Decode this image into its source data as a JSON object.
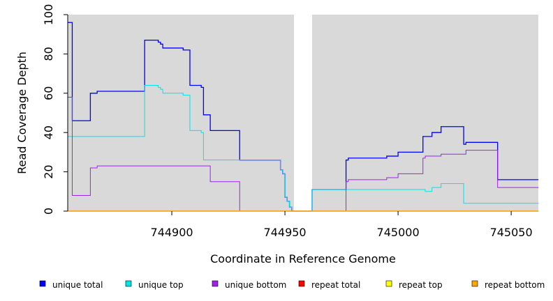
{
  "chart_data": {
    "type": "line",
    "title": "",
    "xlabel": "Coordinate in Reference Genome",
    "ylabel": "Read Coverage Depth",
    "xlim": [
      744854,
      745062
    ],
    "ylim": [
      0,
      100
    ],
    "x_ticks": [
      744900,
      744950,
      745000,
      745050
    ],
    "y_ticks": [
      0,
      20,
      40,
      60,
      80,
      100
    ],
    "gap_region": [
      744954,
      744962
    ],
    "background_color": "#d9d9d9",
    "legend_position": "bottom",
    "series": [
      {
        "name": "unique total",
        "color": "#0000ff",
        "points": [
          [
            744854,
            96
          ],
          [
            744856,
            96
          ],
          [
            744856,
            46
          ],
          [
            744864,
            46
          ],
          [
            744864,
            60
          ],
          [
            744867,
            60
          ],
          [
            744867,
            61
          ],
          [
            744888,
            61
          ],
          [
            744888,
            87
          ],
          [
            744894,
            87
          ],
          [
            744894,
            86
          ],
          [
            744895,
            86
          ],
          [
            744895,
            85
          ],
          [
            744896,
            85
          ],
          [
            744896,
            83
          ],
          [
            744905,
            83
          ],
          [
            744905,
            82
          ],
          [
            744908,
            82
          ],
          [
            744908,
            64
          ],
          [
            744913,
            64
          ],
          [
            744913,
            63
          ],
          [
            744914,
            63
          ],
          [
            744914,
            49
          ],
          [
            744917,
            49
          ],
          [
            744917,
            41
          ],
          [
            744930,
            41
          ],
          [
            744930,
            26
          ],
          [
            744948,
            26
          ],
          [
            744948,
            21
          ],
          [
            744949,
            21
          ],
          [
            744949,
            19
          ],
          [
            744950,
            19
          ],
          [
            744950,
            7
          ],
          [
            744951,
            7
          ],
          [
            744951,
            5
          ],
          [
            744952,
            5
          ],
          [
            744952,
            2
          ],
          [
            744953,
            2
          ],
          [
            744953,
            0
          ],
          [
            744962,
            0
          ],
          [
            744962,
            11
          ],
          [
            744977,
            11
          ],
          [
            744977,
            26
          ],
          [
            744978,
            26
          ],
          [
            744978,
            27
          ],
          [
            744995,
            27
          ],
          [
            744995,
            28
          ],
          [
            745000,
            28
          ],
          [
            745000,
            30
          ],
          [
            745011,
            30
          ],
          [
            745011,
            38
          ],
          [
            745015,
            38
          ],
          [
            745015,
            40
          ],
          [
            745019,
            40
          ],
          [
            745019,
            43
          ],
          [
            745029,
            43
          ],
          [
            745029,
            34
          ],
          [
            745030,
            34
          ],
          [
            745030,
            35
          ],
          [
            745044,
            35
          ],
          [
            745044,
            16
          ],
          [
            745062,
            16
          ]
        ]
      },
      {
        "name": "unique top",
        "color": "#00e5e5",
        "points": [
          [
            744854,
            38
          ],
          [
            744888,
            38
          ],
          [
            744888,
            64
          ],
          [
            744894,
            64
          ],
          [
            744894,
            63
          ],
          [
            744895,
            63
          ],
          [
            744895,
            62
          ],
          [
            744896,
            62
          ],
          [
            744896,
            60
          ],
          [
            744905,
            60
          ],
          [
            744905,
            59
          ],
          [
            744908,
            59
          ],
          [
            744908,
            41
          ],
          [
            744913,
            41
          ],
          [
            744913,
            40
          ],
          [
            744914,
            40
          ],
          [
            744914,
            26
          ],
          [
            744948,
            26
          ],
          [
            744948,
            21
          ],
          [
            744949,
            21
          ],
          [
            744949,
            19
          ],
          [
            744950,
            19
          ],
          [
            744950,
            7
          ],
          [
            744951,
            7
          ],
          [
            744951,
            5
          ],
          [
            744952,
            5
          ],
          [
            744952,
            2
          ],
          [
            744953,
            2
          ],
          [
            744953,
            0
          ],
          [
            744962,
            0
          ],
          [
            744962,
            11
          ],
          [
            745012,
            11
          ],
          [
            745012,
            10
          ],
          [
            745015,
            10
          ],
          [
            745015,
            12
          ],
          [
            745019,
            12
          ],
          [
            745019,
            14
          ],
          [
            745029,
            14
          ],
          [
            745029,
            4
          ],
          [
            745062,
            4
          ]
        ]
      },
      {
        "name": "unique bottom",
        "color": "#a020f0",
        "points": [
          [
            744854,
            58
          ],
          [
            744856,
            58
          ],
          [
            744856,
            8
          ],
          [
            744864,
            8
          ],
          [
            744864,
            22
          ],
          [
            744867,
            22
          ],
          [
            744867,
            23
          ],
          [
            744917,
            23
          ],
          [
            744917,
            15
          ],
          [
            744930,
            15
          ],
          [
            744930,
            0
          ],
          [
            744977,
            0
          ],
          [
            744977,
            15
          ],
          [
            744978,
            15
          ],
          [
            744978,
            16
          ],
          [
            744995,
            16
          ],
          [
            744995,
            17
          ],
          [
            745000,
            17
          ],
          [
            745000,
            19
          ],
          [
            745011,
            19
          ],
          [
            745011,
            27
          ],
          [
            745012,
            27
          ],
          [
            745012,
            28
          ],
          [
            745019,
            28
          ],
          [
            745019,
            29
          ],
          [
            745030,
            29
          ],
          [
            745030,
            31
          ],
          [
            745044,
            31
          ],
          [
            745044,
            12
          ],
          [
            745062,
            12
          ]
        ]
      },
      {
        "name": "repeat total",
        "color": "#ff0000",
        "points": [
          [
            744854,
            0
          ],
          [
            745062,
            0
          ]
        ]
      },
      {
        "name": "repeat top",
        "color": "#ffff00",
        "points": [
          [
            744854,
            0
          ],
          [
            745062,
            0
          ]
        ]
      },
      {
        "name": "repeat bottom",
        "color": "#ffa500",
        "points": [
          [
            744854,
            0
          ],
          [
            745062,
            0
          ]
        ]
      }
    ]
  }
}
